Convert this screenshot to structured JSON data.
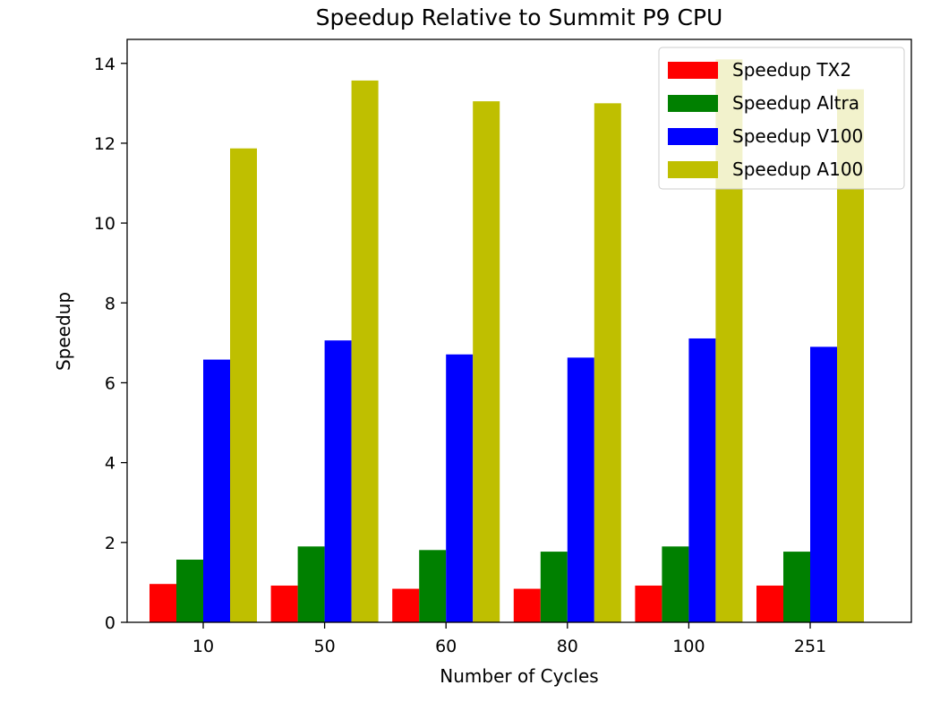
{
  "chart_data": {
    "type": "bar",
    "title": "Speedup Relative to Summit P9 CPU",
    "xlabel": "Number of Cycles",
    "ylabel": "Speedup",
    "categories": [
      "10",
      "50",
      "60",
      "80",
      "100",
      "251"
    ],
    "ylim": [
      0,
      14.6
    ],
    "yticks": [
      0,
      2,
      4,
      6,
      8,
      10,
      12,
      14
    ],
    "grid": false,
    "legend_position": "top-right",
    "series": [
      {
        "name": "Speedup TX2",
        "color": "#ff0000",
        "values": [
          0.96,
          0.92,
          0.84,
          0.84,
          0.92,
          0.92
        ]
      },
      {
        "name": "Speedup Altra",
        "color": "#008000",
        "values": [
          1.57,
          1.9,
          1.81,
          1.77,
          1.9,
          1.77
        ]
      },
      {
        "name": "Speedup V100",
        "color": "#0000ff",
        "values": [
          6.58,
          7.06,
          6.71,
          6.63,
          7.11,
          6.9
        ]
      },
      {
        "name": "Speedup A100",
        "color": "#bfbf00",
        "values": [
          11.87,
          13.57,
          13.05,
          13.0,
          14.1,
          13.35
        ]
      }
    ]
  }
}
